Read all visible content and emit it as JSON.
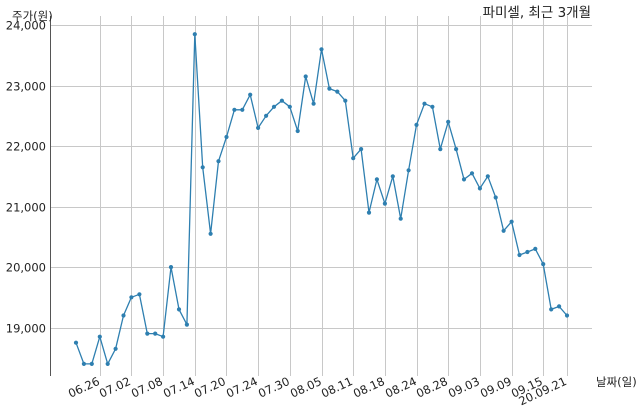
{
  "chart_data": {
    "type": "line",
    "title": "파미셀, 최근 3개월",
    "ylabel": "주가(원)",
    "xlabel": "날짜(일)",
    "ylim": [
      18200,
      24150
    ],
    "yticks": [
      19000,
      20000,
      21000,
      22000,
      23000,
      24000
    ],
    "ytick_labels": [
      "19,000",
      "20,000",
      "21,000",
      "22,000",
      "23,000",
      "24,000"
    ],
    "xtick_labels": [
      "06.26",
      "07.02",
      "07.08",
      "07.14",
      "07.20",
      "07.24",
      "07.30",
      "08.05",
      "08.11",
      "08.18",
      "08.24",
      "08.28",
      "09.03",
      "09.09",
      "09.15",
      "20.09.21"
    ],
    "xtick_index": [
      3,
      7,
      11,
      15,
      19,
      23,
      27,
      31,
      35,
      39,
      43,
      47,
      51,
      55,
      59,
      62
    ],
    "grid": true,
    "line_color": "#2e7fb0",
    "grid_color": "#c8c8c8",
    "series": [
      {
        "values": [
          18750,
          18400,
          18400,
          18850,
          18400,
          18650,
          19200,
          19500,
          19550,
          18900,
          18900,
          18850,
          20000,
          19300,
          19050,
          23850,
          21650,
          20550,
          21750,
          22150,
          22600,
          22600,
          22850,
          22300,
          22500,
          22650,
          22750,
          22650,
          22250,
          23150,
          22700,
          23600,
          22950,
          22900,
          22750,
          21800,
          21950,
          20900,
          21450,
          21050,
          21500,
          20800,
          21600,
          22350,
          22700,
          22650,
          21950,
          22400,
          21950,
          21450,
          21550,
          21300,
          21500,
          21150,
          20600,
          20750,
          20200,
          20250,
          20300,
          20050,
          19300,
          19350,
          19200
        ]
      }
    ]
  }
}
